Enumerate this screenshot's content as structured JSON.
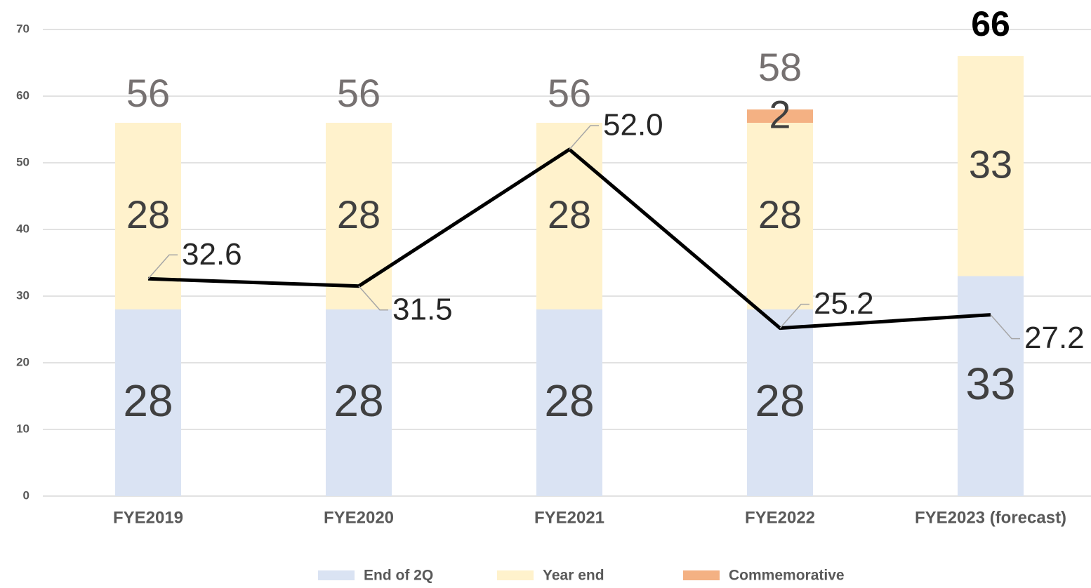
{
  "chart_data": {
    "type": "bar",
    "categories": [
      "FYE2019",
      "FYE2020",
      "FYE2021",
      "FYE2022",
      "FYE2023 (forecast)"
    ],
    "series": [
      {
        "name": "End of 2Q",
        "color": "#dae3f3",
        "values": [
          28,
          28,
          28,
          28,
          33
        ]
      },
      {
        "name": "Year end",
        "color": "#fff2cc",
        "values": [
          28,
          28,
          28,
          28,
          33
        ]
      },
      {
        "name": "Commemorative",
        "color": "#f4b183",
        "values": [
          null,
          null,
          null,
          2,
          null
        ]
      }
    ],
    "totals": [
      56,
      56,
      56,
      58,
      66
    ],
    "line": {
      "type": "line",
      "color": "#000000",
      "values": [
        32.6,
        31.5,
        52.0,
        25.2,
        27.2
      ],
      "value_labels": [
        "32.6",
        "31.5",
        "52.0",
        "25.2",
        "27.2"
      ]
    },
    "ylim": [
      0,
      70
    ],
    "yticks": [
      0,
      10,
      20,
      30,
      40,
      50,
      60,
      70
    ],
    "grid": true,
    "legend": "bottom"
  }
}
